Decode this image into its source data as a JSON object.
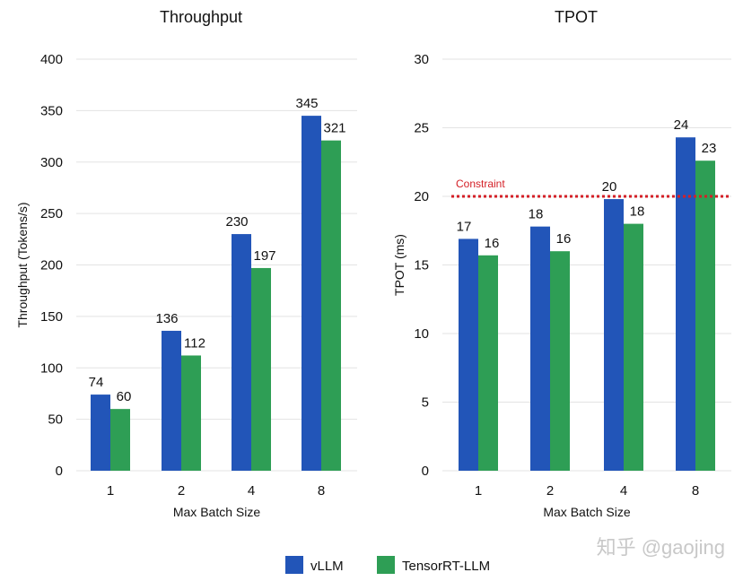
{
  "chart_data": [
    {
      "type": "bar",
      "title": "Throughput",
      "xlabel": "Max Batch Size",
      "ylabel": "Throughput (Tokens/s)",
      "categories": [
        "1",
        "2",
        "4",
        "8"
      ],
      "ylim": [
        0,
        400
      ],
      "yticks": [
        0,
        50,
        100,
        150,
        200,
        250,
        300,
        350,
        400
      ],
      "grid": true,
      "series": [
        {
          "name": "vLLM",
          "values": [
            74,
            136,
            230,
            345
          ],
          "labels": [
            "74",
            "136",
            "230",
            "345"
          ]
        },
        {
          "name": "TensorRT-LLM",
          "values": [
            60,
            112,
            197,
            321
          ],
          "labels": [
            "60",
            "112",
            "197",
            "321"
          ]
        }
      ]
    },
    {
      "type": "bar",
      "title": "TPOT",
      "xlabel": "Max Batch Size",
      "ylabel": "TPOT (ms)",
      "categories": [
        "1",
        "2",
        "4",
        "8"
      ],
      "ylim": [
        0,
        30
      ],
      "yticks": [
        0,
        5,
        10,
        15,
        20,
        25,
        30
      ],
      "grid": true,
      "series": [
        {
          "name": "vLLM",
          "values": [
            16.9,
            17.8,
            19.8,
            24.3
          ],
          "labels": [
            "17",
            "18",
            "20",
            "24"
          ]
        },
        {
          "name": "TensorRT-LLM",
          "values": [
            15.7,
            16.0,
            18.0,
            22.6
          ],
          "labels": [
            "16",
            "16",
            "18",
            "23"
          ]
        }
      ],
      "annotations": [
        {
          "type": "hline",
          "value": 20,
          "label": "Constraint",
          "color": "#d42027"
        }
      ]
    }
  ],
  "legend": {
    "placement": "bottom-center",
    "items": [
      "vLLM",
      "TensorRT-LLM"
    ]
  },
  "colors": {
    "vLLM": "#2255b8",
    "TensorRT-LLM": "#2e9e55",
    "grid": "#e3e3e3"
  },
  "watermark": "知乎 @gaojing"
}
